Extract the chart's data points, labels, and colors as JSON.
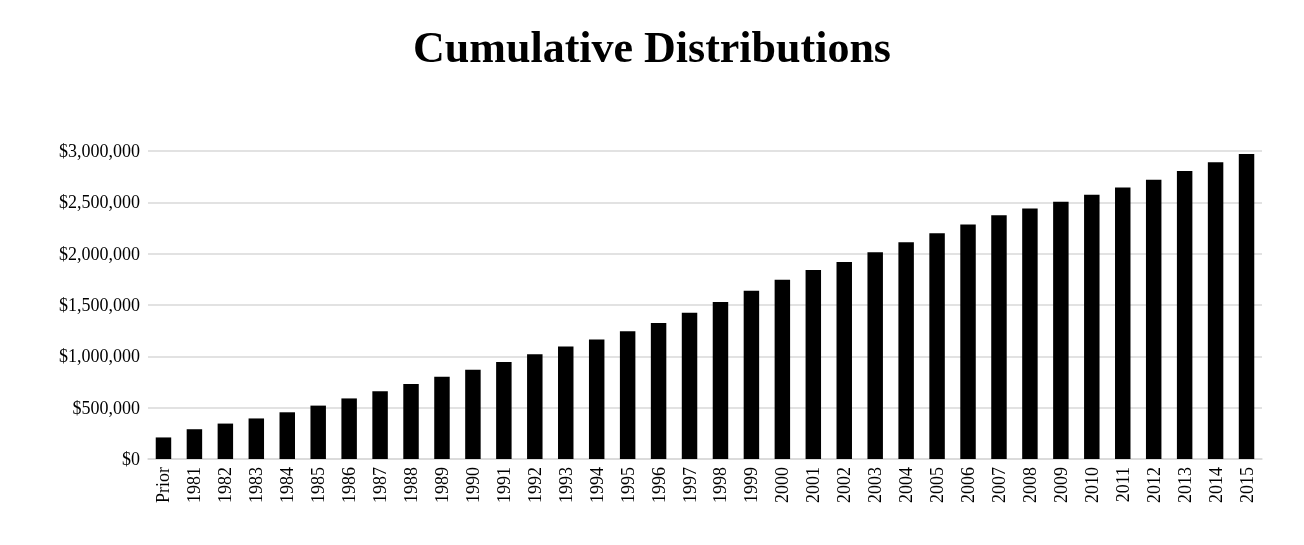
{
  "chart_data": {
    "type": "bar",
    "title": "Cumulative Distributions",
    "categories": [
      "Prior",
      "1981",
      "1982",
      "1983",
      "1984",
      "1985",
      "1986",
      "1987",
      "1988",
      "1989",
      "1990",
      "1991",
      "1992",
      "1993",
      "1994",
      "1995",
      "1996",
      "1997",
      "1998",
      "1999",
      "2000",
      "2001",
      "2002",
      "2003",
      "2004",
      "2005",
      "2006",
      "2007",
      "2008",
      "2009",
      "2010",
      "2011",
      "2012",
      "2013",
      "2014",
      "2015"
    ],
    "values": [
      210000,
      290000,
      345000,
      395000,
      455000,
      520000,
      590000,
      660000,
      730000,
      800000,
      870000,
      945000,
      1020000,
      1095000,
      1165000,
      1245000,
      1325000,
      1425000,
      1530000,
      1640000,
      1745000,
      1840000,
      1920000,
      2015000,
      2110000,
      2200000,
      2285000,
      2375000,
      2440000,
      2505000,
      2575000,
      2645000,
      2720000,
      2805000,
      2890000,
      2970000
    ],
    "color": "#000000",
    "ylim": [
      0,
      3000000
    ],
    "yticks": [
      {
        "value": 0,
        "label": "$0"
      },
      {
        "value": 500000,
        "label": "$500,000"
      },
      {
        "value": 1000000,
        "label": "$1,000,000"
      },
      {
        "value": 1500000,
        "label": "$1,500,000"
      },
      {
        "value": 2000000,
        "label": "$2,000,000"
      },
      {
        "value": 2500000,
        "label": "$2,500,000"
      },
      {
        "value": 3000000,
        "label": "$3,000,000"
      }
    ],
    "grid": true
  }
}
